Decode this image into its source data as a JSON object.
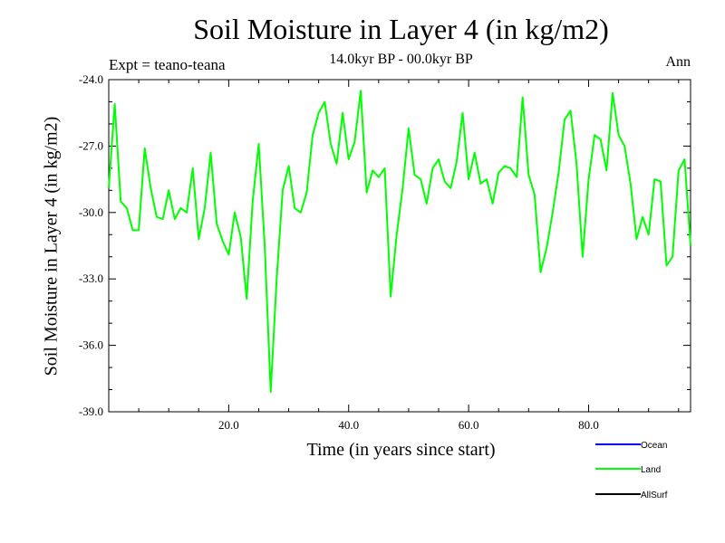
{
  "chart_data": {
    "type": "line",
    "title": "Soil Moisture in Layer 4 (in kg/m2)",
    "subtitle": "14.0kyr BP - 00.0kyr BP",
    "experiment": "Expt = teano-teana",
    "season": "Ann",
    "xlabel": "Time (in years since start)",
    "ylabel": "Soil Moisture in Layer 4 (in kg/m2)",
    "xlim": [
      0,
      97
    ],
    "ylim": [
      -39.0,
      -24.0
    ],
    "x_ticks": [
      20.0,
      40.0,
      60.0,
      80.0
    ],
    "x_tick_labels": [
      "20.0",
      "40.0",
      "60.0",
      "80.0"
    ],
    "y_ticks": [
      -24.0,
      -27.0,
      -30.0,
      -33.0,
      -36.0,
      -39.0
    ],
    "y_tick_labels": [
      "-24.0",
      "-27.0",
      "-30.0",
      "-33.0",
      "-36.0",
      "-39.0"
    ],
    "legend": [
      {
        "name": "Ocean",
        "color": "#0000ff"
      },
      {
        "name": "Land",
        "color": "#00ff00"
      },
      {
        "name": "AllSurf",
        "color": "#000000"
      }
    ],
    "series": [
      {
        "name": "Land",
        "color": "#00ff00",
        "x": [
          0,
          1,
          2,
          3,
          4,
          5,
          6,
          7,
          8,
          9,
          10,
          11,
          12,
          13,
          14,
          15,
          16,
          17,
          18,
          19,
          20,
          21,
          22,
          23,
          24,
          25,
          26,
          27,
          28,
          29,
          30,
          31,
          32,
          33,
          34,
          35,
          36,
          37,
          38,
          39,
          40,
          41,
          42,
          43,
          44,
          45,
          46,
          47,
          48,
          49,
          50,
          51,
          52,
          53,
          54,
          55,
          56,
          57,
          58,
          59,
          60,
          61,
          62,
          63,
          64,
          65,
          66,
          67,
          68,
          69,
          70,
          71,
          72,
          73,
          74,
          75,
          76,
          77,
          78,
          79,
          80,
          81,
          82,
          83,
          84,
          85,
          86,
          87,
          88,
          89,
          90,
          91,
          92,
          93,
          94,
          95,
          96,
          97
        ],
        "values": [
          -28.9,
          -25.1,
          -29.5,
          -29.8,
          -30.8,
          -30.8,
          -27.1,
          -28.9,
          -30.2,
          -30.3,
          -29.0,
          -30.3,
          -29.8,
          -30.0,
          -28.0,
          -31.2,
          -29.8,
          -27.3,
          -30.5,
          -31.3,
          -31.9,
          -30.0,
          -31.1,
          -33.9,
          -29.5,
          -26.9,
          -31.5,
          -38.1,
          -33.0,
          -29.0,
          -27.9,
          -29.8,
          -30.0,
          -29.1,
          -26.5,
          -25.5,
          -25.0,
          -26.9,
          -27.8,
          -25.5,
          -27.6,
          -26.8,
          -24.5,
          -29.1,
          -28.1,
          -28.4,
          -28.0,
          -33.8,
          -31.0,
          -28.9,
          -26.2,
          -28.3,
          -28.5,
          -29.6,
          -28.0,
          -27.6,
          -28.6,
          -28.9,
          -27.7,
          -25.5,
          -28.5,
          -27.3,
          -28.7,
          -28.5,
          -29.6,
          -28.2,
          -27.9,
          -28.0,
          -28.4,
          -24.8,
          -28.3,
          -29.2,
          -32.7,
          -31.6,
          -30.0,
          -28.2,
          -25.8,
          -25.4,
          -27.8,
          -32.0,
          -28.5,
          -26.5,
          -26.7,
          -28.1,
          -24.6,
          -26.5,
          -27.0,
          -28.7,
          -31.2,
          -30.2,
          -31.0,
          -28.5,
          -28.6,
          -32.4,
          -32.0,
          -28.1,
          -27.6,
          -31.5
        ]
      }
    ]
  }
}
